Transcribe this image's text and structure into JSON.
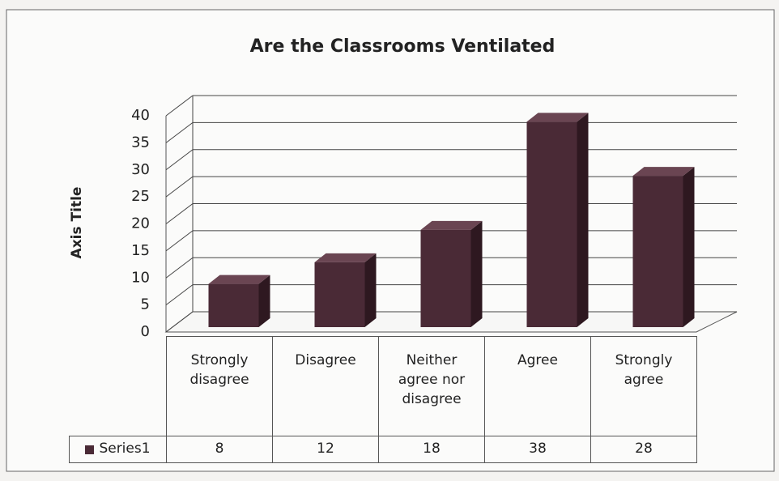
{
  "chart_data": {
    "type": "bar3d",
    "title": "Are the Classrooms Ventilated",
    "y_axis_label": "Axis Title",
    "categories": [
      "Strongly disagree",
      "Disagree",
      "Neither agree nor disagree",
      "Agree",
      "Strongly agree"
    ],
    "series": [
      {
        "name": "Series1",
        "color": "#4a2a36",
        "values": [
          8,
          12,
          18,
          38,
          28
        ]
      }
    ],
    "ylim": [
      0,
      40
    ],
    "yticks": [
      0,
      5,
      10,
      15,
      20,
      25,
      30,
      35,
      40
    ],
    "grid": true,
    "data_table": true
  }
}
